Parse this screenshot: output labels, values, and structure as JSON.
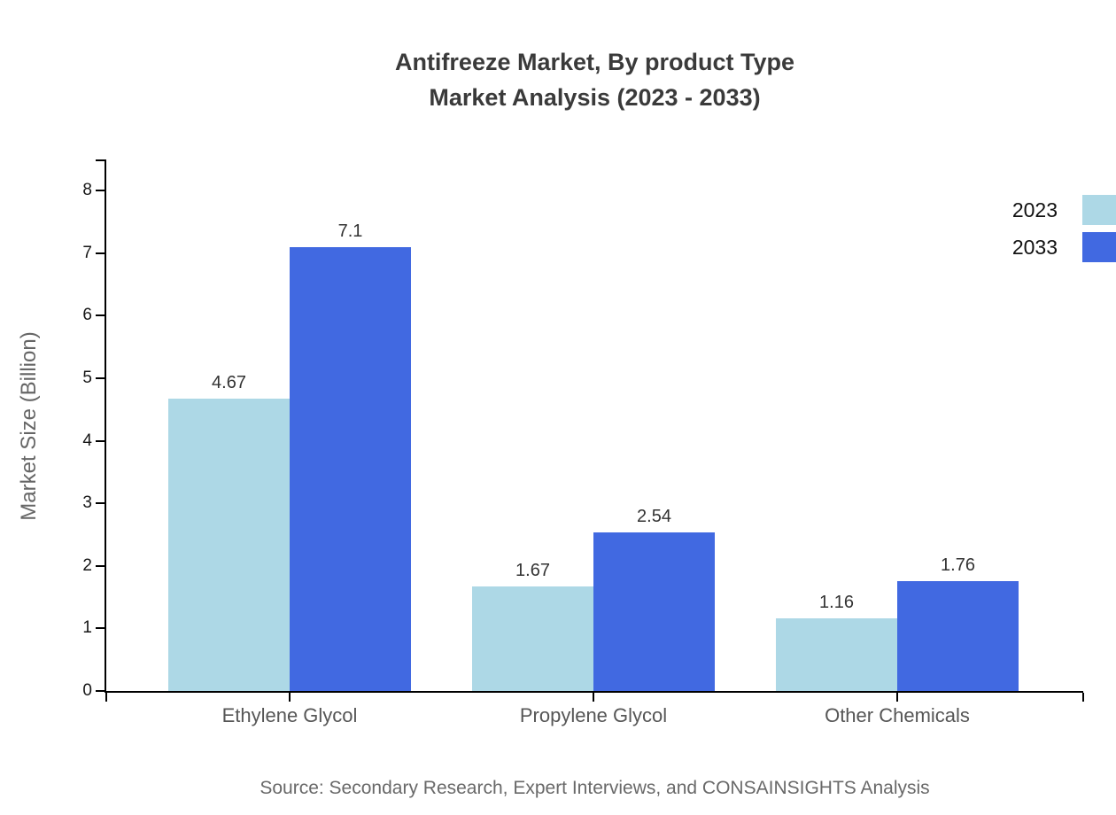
{
  "title": {
    "line1": "Antifreeze Market, By product Type",
    "line2": "Market Analysis (2023 - 2033)"
  },
  "y_axis": {
    "label": "Market Size (Billion)"
  },
  "legend": {
    "items": [
      {
        "label": "2023",
        "color": "#ADD8E6"
      },
      {
        "label": "2033",
        "color": "#4169E1"
      }
    ]
  },
  "footer": {
    "source": "Source: Secondary Research, Expert Interviews, and CONSAINSIGHTS Analysis"
  },
  "chart_data": {
    "type": "bar",
    "title": "Antifreeze Market, By product Type - Market Analysis (2023 - 2033)",
    "categories": [
      "Ethylene Glycol",
      "Propylene Glycol",
      "Other Chemicals"
    ],
    "series": [
      {
        "name": "2023",
        "color": "#ADD8E6",
        "values": [
          4.67,
          1.67,
          1.16
        ],
        "labels": [
          "4.67",
          "1.67",
          "1.16"
        ]
      },
      {
        "name": "2033",
        "color": "#4169E1",
        "values": [
          7.1,
          2.54,
          1.76
        ],
        "labels": [
          "7.1",
          "2.54",
          "1.76"
        ]
      }
    ],
    "xlabel": "",
    "ylabel": "Market Size (Billion)",
    "ylim": [
      0,
      8.5
    ],
    "yticks": [
      0,
      1,
      2,
      3,
      4,
      5,
      6,
      7,
      8
    ],
    "grid": false,
    "legend_position": "top-right",
    "value_labels_shown": true
  }
}
